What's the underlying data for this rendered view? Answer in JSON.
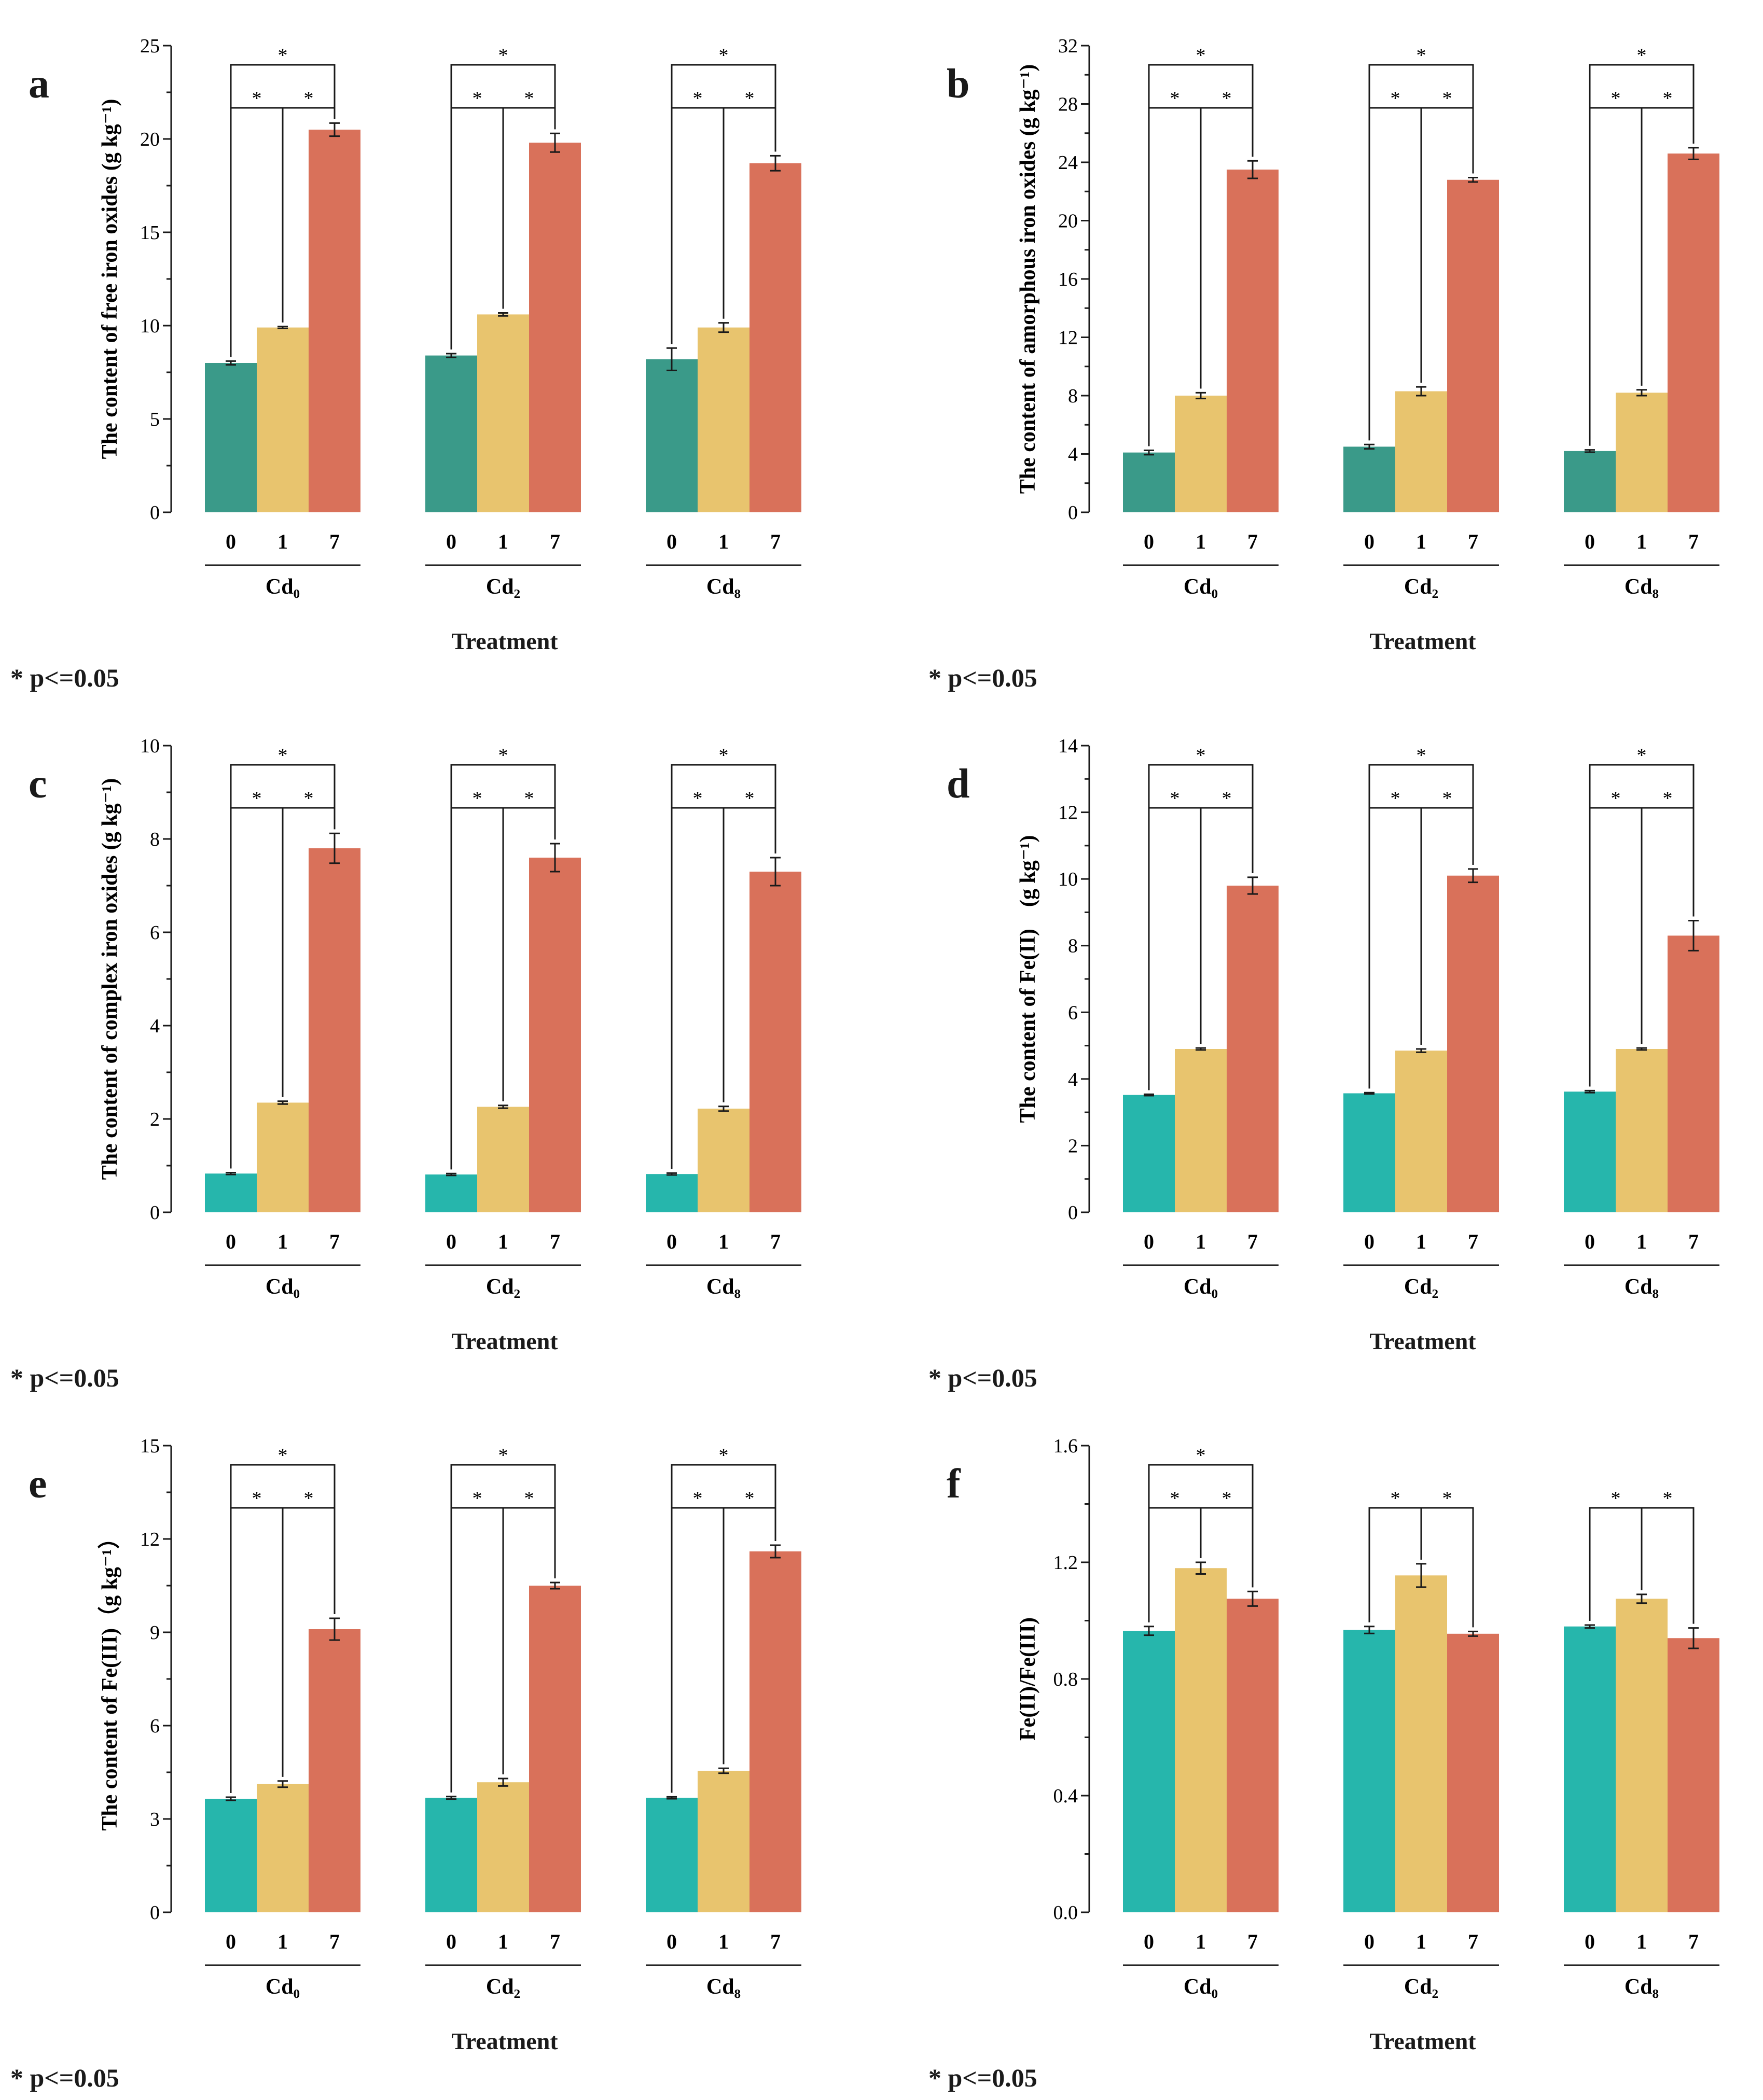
{
  "figure": {
    "significance_note": "* p<=0.05",
    "x_title": "Treatment",
    "sub_labels": [
      "0",
      "1",
      "7"
    ],
    "colors": {
      "dark_teal": "#3A9A89",
      "teal": "#26B6AC",
      "yellow": "#E8C46E",
      "red": "#D9715A"
    }
  },
  "chart_data": [
    {
      "id": "a",
      "letter": "a",
      "type": "bar",
      "ylabel": "The content of  free iron oxides (g kg⁻¹)",
      "ylim": [
        0,
        25
      ],
      "yticks": [
        0,
        5,
        10,
        15,
        20,
        25
      ],
      "ytick_labels": [
        "0",
        "5",
        "10",
        "15",
        "20",
        "25"
      ],
      "minor_ticks": true,
      "categories": [
        "Cd₀",
        "Cd₂",
        "Cd₈"
      ],
      "subcategories": [
        "0",
        "1",
        "7"
      ],
      "series": [
        {
          "name": "0",
          "color": "#3A9A89",
          "values": [
            8.0,
            8.4,
            8.2
          ],
          "errors": [
            0.1,
            0.1,
            0.6
          ]
        },
        {
          "name": "1",
          "color": "#E8C46E",
          "values": [
            9.9,
            10.6,
            9.9
          ],
          "errors": [
            0.05,
            0.08,
            0.25
          ]
        },
        {
          "name": "7",
          "color": "#D9715A",
          "values": [
            20.5,
            19.8,
            18.7
          ],
          "errors": [
            0.35,
            0.5,
            0.4
          ]
        }
      ],
      "sig_star": "*",
      "significance": [
        {
          "group": 0,
          "from": 0,
          "to": 1
        },
        {
          "group": 0,
          "from": 1,
          "to": 2
        },
        {
          "group": 0,
          "from": 0,
          "to": 2
        },
        {
          "group": 1,
          "from": 0,
          "to": 1
        },
        {
          "group": 1,
          "from": 1,
          "to": 2
        },
        {
          "group": 1,
          "from": 0,
          "to": 2
        },
        {
          "group": 2,
          "from": 0,
          "to": 1
        },
        {
          "group": 2,
          "from": 1,
          "to": 2
        },
        {
          "group": 2,
          "from": 0,
          "to": 2
        }
      ]
    },
    {
      "id": "b",
      "letter": "b",
      "type": "bar",
      "ylabel": "The content of  amorphous iron oxides (g kg⁻¹)",
      "ylim": [
        0,
        32
      ],
      "yticks": [
        0,
        4,
        8,
        12,
        16,
        20,
        24,
        28,
        32
      ],
      "ytick_labels": [
        "0",
        "4",
        "8",
        "12",
        "16",
        "20",
        "24",
        "28",
        "32"
      ],
      "minor_ticks": true,
      "categories": [
        "Cd₀",
        "Cd₂",
        "Cd₈"
      ],
      "subcategories": [
        "0",
        "1",
        "7"
      ],
      "series": [
        {
          "name": "0",
          "color": "#3A9A89",
          "values": [
            4.1,
            4.5,
            4.2
          ],
          "errors": [
            0.15,
            0.15,
            0.08
          ]
        },
        {
          "name": "1",
          "color": "#E8C46E",
          "values": [
            8.0,
            8.3,
            8.2
          ],
          "errors": [
            0.2,
            0.3,
            0.2
          ]
        },
        {
          "name": "7",
          "color": "#D9715A",
          "values": [
            23.5,
            22.8,
            24.6
          ],
          "errors": [
            0.6,
            0.15,
            0.4
          ]
        }
      ],
      "sig_star": "*",
      "significance": [
        {
          "group": 0,
          "from": 0,
          "to": 1
        },
        {
          "group": 0,
          "from": 1,
          "to": 2
        },
        {
          "group": 0,
          "from": 0,
          "to": 2
        },
        {
          "group": 1,
          "from": 0,
          "to": 1
        },
        {
          "group": 1,
          "from": 1,
          "to": 2
        },
        {
          "group": 1,
          "from": 0,
          "to": 2
        },
        {
          "group": 2,
          "from": 0,
          "to": 1
        },
        {
          "group": 2,
          "from": 1,
          "to": 2
        },
        {
          "group": 2,
          "from": 0,
          "to": 2
        }
      ]
    },
    {
      "id": "c",
      "letter": "c",
      "type": "bar",
      "ylabel": "The content of  complex iron oxides (g kg⁻¹)",
      "ylim": [
        0,
        10
      ],
      "yticks": [
        0,
        2,
        4,
        6,
        8,
        10
      ],
      "ytick_labels": [
        "0",
        "2",
        "4",
        "6",
        "8",
        "10"
      ],
      "minor_ticks": true,
      "categories": [
        "Cd₀",
        "Cd₂",
        "Cd₈"
      ],
      "subcategories": [
        "0",
        "1",
        "7"
      ],
      "series": [
        {
          "name": "0",
          "color": "#26B6AC",
          "values": [
            0.83,
            0.81,
            0.82
          ],
          "errors": [
            0.02,
            0.02,
            0.02
          ]
        },
        {
          "name": "1",
          "color": "#E8C46E",
          "values": [
            2.35,
            2.26,
            2.22
          ],
          "errors": [
            0.03,
            0.03,
            0.05
          ]
        },
        {
          "name": "7",
          "color": "#D9715A",
          "values": [
            7.8,
            7.6,
            7.3
          ],
          "errors": [
            0.32,
            0.3,
            0.3
          ]
        }
      ],
      "sig_star": "*",
      "significance": [
        {
          "group": 0,
          "from": 0,
          "to": 1
        },
        {
          "group": 0,
          "from": 1,
          "to": 2
        },
        {
          "group": 0,
          "from": 0,
          "to": 2
        },
        {
          "group": 1,
          "from": 0,
          "to": 1
        },
        {
          "group": 1,
          "from": 1,
          "to": 2
        },
        {
          "group": 1,
          "from": 0,
          "to": 2
        },
        {
          "group": 2,
          "from": 0,
          "to": 1
        },
        {
          "group": 2,
          "from": 1,
          "to": 2
        },
        {
          "group": 2,
          "from": 0,
          "to": 2
        }
      ]
    },
    {
      "id": "d",
      "letter": "d",
      "type": "bar",
      "ylabel": "The content of Fe(II)　(g kg⁻¹)",
      "ylim": [
        0,
        14
      ],
      "yticks": [
        0,
        2,
        4,
        6,
        8,
        10,
        12,
        14
      ],
      "ytick_labels": [
        "0",
        "2",
        "4",
        "6",
        "8",
        "10",
        "12",
        "14"
      ],
      "minor_ticks": true,
      "categories": [
        "Cd₀",
        "Cd₂",
        "Cd₈"
      ],
      "subcategories": [
        "0",
        "1",
        "7"
      ],
      "series": [
        {
          "name": "0",
          "color": "#26B6AC",
          "values": [
            3.52,
            3.57,
            3.62
          ],
          "errors": [
            0.02,
            0.02,
            0.03
          ]
        },
        {
          "name": "1",
          "color": "#E8C46E",
          "values": [
            4.9,
            4.85,
            4.9
          ],
          "errors": [
            0.03,
            0.05,
            0.03
          ]
        },
        {
          "name": "7",
          "color": "#D9715A",
          "values": [
            9.8,
            10.1,
            8.3
          ],
          "errors": [
            0.25,
            0.2,
            0.45
          ]
        }
      ],
      "sig_star": "*",
      "significance": [
        {
          "group": 0,
          "from": 0,
          "to": 1
        },
        {
          "group": 0,
          "from": 1,
          "to": 2
        },
        {
          "group": 0,
          "from": 0,
          "to": 2
        },
        {
          "group": 1,
          "from": 0,
          "to": 1
        },
        {
          "group": 1,
          "from": 1,
          "to": 2
        },
        {
          "group": 1,
          "from": 0,
          "to": 2
        },
        {
          "group": 2,
          "from": 0,
          "to": 1
        },
        {
          "group": 2,
          "from": 1,
          "to": 2
        },
        {
          "group": 2,
          "from": 0,
          "to": 2
        }
      ]
    },
    {
      "id": "e",
      "letter": "e",
      "type": "bar",
      "ylabel": "The content of Fe(III)（g kg⁻¹）",
      "ylim": [
        0,
        15
      ],
      "yticks": [
        0,
        3,
        6,
        9,
        12,
        15
      ],
      "ytick_labels": [
        "0",
        "3",
        "6",
        "9",
        "12",
        "15"
      ],
      "minor_ticks": true,
      "categories": [
        "Cd₀",
        "Cd₂",
        "Cd₈"
      ],
      "subcategories": [
        "0",
        "1",
        "7"
      ],
      "series": [
        {
          "name": "0",
          "color": "#26B6AC",
          "values": [
            3.65,
            3.68,
            3.68
          ],
          "errors": [
            0.05,
            0.04,
            0.03
          ]
        },
        {
          "name": "1",
          "color": "#E8C46E",
          "values": [
            4.12,
            4.18,
            4.55
          ],
          "errors": [
            0.1,
            0.12,
            0.08
          ]
        },
        {
          "name": "7",
          "color": "#D9715A",
          "values": [
            9.1,
            10.5,
            11.6
          ],
          "errors": [
            0.35,
            0.1,
            0.2
          ]
        }
      ],
      "sig_star": "*",
      "significance": [
        {
          "group": 0,
          "from": 0,
          "to": 1
        },
        {
          "group": 0,
          "from": 1,
          "to": 2
        },
        {
          "group": 0,
          "from": 0,
          "to": 2
        },
        {
          "group": 1,
          "from": 0,
          "to": 1
        },
        {
          "group": 1,
          "from": 1,
          "to": 2
        },
        {
          "group": 1,
          "from": 0,
          "to": 2
        },
        {
          "group": 2,
          "from": 0,
          "to": 1
        },
        {
          "group": 2,
          "from": 1,
          "to": 2
        },
        {
          "group": 2,
          "from": 0,
          "to": 2
        }
      ]
    },
    {
      "id": "f",
      "letter": "f",
      "type": "bar",
      "ylabel": "Fe(II)/Fe(III)",
      "ylim": [
        0,
        1.6
      ],
      "yticks": [
        0,
        0.4,
        0.8,
        1.2,
        1.6
      ],
      "ytick_labels": [
        "0.0",
        "0.4",
        "0.8",
        "1.2",
        "1.6"
      ],
      "minor_ticks": true,
      "categories": [
        "Cd₀",
        "Cd₂",
        "Cd₈"
      ],
      "subcategories": [
        "0",
        "1",
        "7"
      ],
      "series": [
        {
          "name": "0",
          "color": "#26B6AC",
          "values": [
            0.965,
            0.968,
            0.98
          ],
          "errors": [
            0.015,
            0.012,
            0.005
          ]
        },
        {
          "name": "1",
          "color": "#E8C46E",
          "values": [
            1.18,
            1.155,
            1.075
          ],
          "errors": [
            0.02,
            0.04,
            0.015
          ]
        },
        {
          "name": "7",
          "color": "#D9715A",
          "values": [
            1.075,
            0.955,
            0.94
          ],
          "errors": [
            0.025,
            0.008,
            0.035
          ]
        }
      ],
      "sig_star": "*",
      "significance": [
        {
          "group": 0,
          "from": 0,
          "to": 1
        },
        {
          "group": 0,
          "from": 1,
          "to": 2
        },
        {
          "group": 0,
          "from": 0,
          "to": 2
        },
        {
          "group": 1,
          "from": 0,
          "to": 1
        },
        {
          "group": 1,
          "from": 1,
          "to": 2
        },
        {
          "group": 2,
          "from": 0,
          "to": 1
        },
        {
          "group": 2,
          "from": 1,
          "to": 2
        }
      ]
    }
  ]
}
